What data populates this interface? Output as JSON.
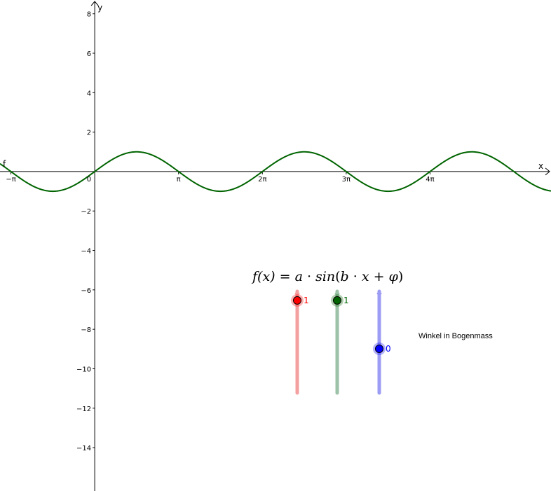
{
  "chart_data": {
    "type": "line",
    "function_label": "f",
    "xlabel": "x",
    "ylabel": "y",
    "xlim": [
      -3.55,
      17.1
    ],
    "ylim": [
      -16.2,
      8.7
    ],
    "x_ticks": [
      {
        "value": -3.14159,
        "label": "−π"
      },
      {
        "value": 3.14159,
        "label": "π"
      },
      {
        "value": 6.28319,
        "label": "2π"
      },
      {
        "value": 9.42478,
        "label": "3π"
      },
      {
        "value": 12.56637,
        "label": "4π"
      }
    ],
    "y_ticks": [
      {
        "value": 8,
        "label": "8"
      },
      {
        "value": 6,
        "label": "6"
      },
      {
        "value": 4,
        "label": "4"
      },
      {
        "value": 2,
        "label": "2"
      },
      {
        "value": -2,
        "label": "−2"
      },
      {
        "value": -4,
        "label": "−4"
      },
      {
        "value": -6,
        "label": "−6"
      },
      {
        "value": -8,
        "label": "−8"
      },
      {
        "value": -10,
        "label": "−10"
      },
      {
        "value": -12,
        "label": "−12"
      },
      {
        "value": -14,
        "label": "−14"
      }
    ],
    "origin_label": "0",
    "parameters": {
      "a": 1,
      "b": 1,
      "phi": 0
    },
    "curve_color": "#006400",
    "grid": false
  },
  "formula": {
    "lhs": "f(x)",
    "eq": " = ",
    "a": "a",
    "dot1": " · ",
    "sin": "sin",
    "open": "(",
    "b": "b",
    "dot2": " · ",
    "x": "x",
    "plus": " + ",
    "phi": "φ",
    "close": ")"
  },
  "sliders": [
    {
      "name": "a",
      "value": 1,
      "value_label": "1",
      "color": "#ff0000",
      "track_color": "#f4a0a0",
      "min": -1.05,
      "max": 1.2
    },
    {
      "name": "b",
      "value": 1,
      "value_label": "1",
      "color": "#006400",
      "track_color": "#9cc2a8",
      "min": -1.05,
      "max": 1.2
    },
    {
      "name": "phi",
      "value": 0,
      "value_label": "0",
      "color": "#0000ff",
      "track_color": "#9c9cf4",
      "min": -1.0,
      "max": 1.3
    }
  ],
  "note": "Winkel in Bogenmass"
}
